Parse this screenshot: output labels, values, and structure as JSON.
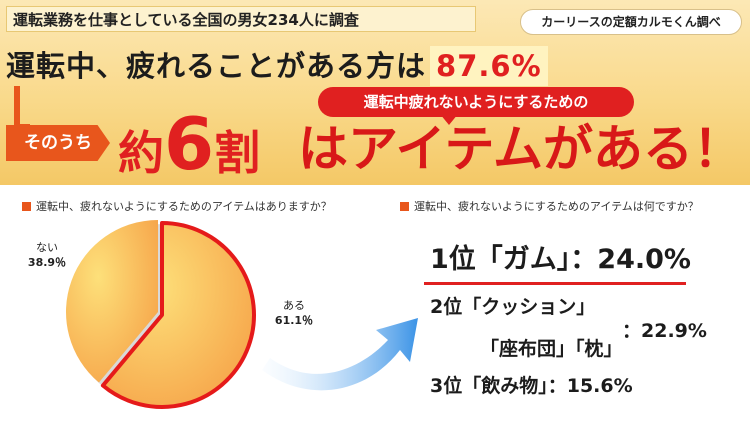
{
  "header": {
    "survey": "運転業務を仕事としている全国の男女234人に調査",
    "source": "カーリースの定額カルモくん調べ",
    "headline": "運転中、疲れることがある方は",
    "headline_pct": "87.6%",
    "sonouchi": "そのうち",
    "yaku_prefix": "約",
    "yaku_num": "6",
    "yaku_suffix": "割",
    "callout": "運転中疲れないようにするための",
    "item_text": "はアイテムがある！"
  },
  "colors": {
    "accent": "#e8561c",
    "highlight": "#e02020",
    "pie_light": "#fbd45a",
    "pie_dark": "#f6a54a",
    "arrow": "#3b93e6"
  },
  "question_left": "運転中、疲れないようにするためのアイテムはありますか？",
  "question_right": "運転中、疲れないようにするためのアイテムは何ですか？",
  "chart_data": {
    "type": "pie",
    "categories": [
      "ある",
      "ない"
    ],
    "values": [
      61.1,
      38.9
    ],
    "value_labels": [
      "61.1％",
      "38.9％"
    ],
    "highlight": "ある"
  },
  "ranking": {
    "rank1": "1位「ガム」：24.0%",
    "rank2_line1": "2位「クッション」",
    "rank2_line2": "「座布団」「枕」",
    "rank2_pct": "：22.9%",
    "rank3": "3位「飲み物」：15.6%"
  }
}
